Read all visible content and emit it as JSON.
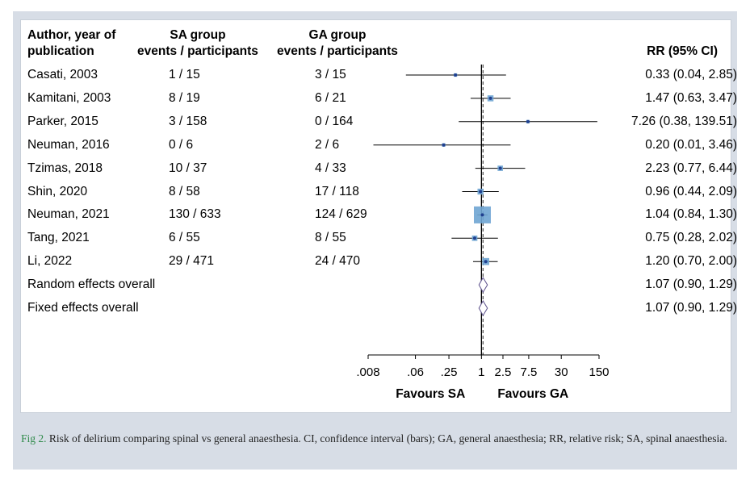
{
  "headers": {
    "author_line1": "Author, year of",
    "author_line2": "publication",
    "sa_line1": "SA group",
    "sa_line2": "events / participants",
    "ga_line1": "GA group",
    "ga_line2": "events / participants",
    "rr": "RR (95% CI)"
  },
  "caption": {
    "fig_label": "Fig 2.",
    "text": " Risk of delirium comparing spinal vs general anaesthesia. CI, confidence interval (bars); GA, general anaesthesia; RR, relative risk; SA, spinal anaesthesia."
  },
  "colors": {
    "box": "#6fa5d3",
    "point": "#1f3f8f",
    "diamond": "#5a4f8a",
    "ci": "#000000"
  },
  "chart_data": {
    "type": "forest",
    "x_scale": "log",
    "xlim": [
      0.008,
      150
    ],
    "x_ticks": [
      {
        "value": 0.008,
        "label": ".008"
      },
      {
        "value": 0.06,
        "label": ".06"
      },
      {
        "value": 0.25,
        "label": ".25"
      },
      {
        "value": 1,
        "label": "1"
      },
      {
        "value": 2.5,
        "label": "2.5"
      },
      {
        "value": 7.5,
        "label": "7.5"
      },
      {
        "value": 30,
        "label": "30"
      },
      {
        "value": 150,
        "label": "150"
      }
    ],
    "reference_line": 1,
    "overall_line": 1.07,
    "favours_left": "Favours SA",
    "favours_right": "Favours GA",
    "studies": [
      {
        "author": "Casati, 2003",
        "sa": "1 / 15",
        "ga": "3 / 15",
        "rr": 0.33,
        "lo": 0.04,
        "hi": 2.85,
        "rr_text": "0.33 (0.04, 2.85)",
        "weight": 0.3
      },
      {
        "author": "Kamitani, 2003",
        "sa": "8 / 19",
        "ga": "6 / 21",
        "rr": 1.47,
        "lo": 0.63,
        "hi": 3.47,
        "rr_text": "1.47 (0.63, 3.47)",
        "weight": 3.7
      },
      {
        "author": "Parker, 2015",
        "sa": "3 / 158",
        "ga": "0 / 164",
        "rr": 7.26,
        "lo": 0.38,
        "hi": 139.51,
        "rr_text": "7.26 (0.38, 139.51)",
        "weight": 0.3
      },
      {
        "author": "Neuman, 2016",
        "sa": "0 / 6",
        "ga": "2 / 6",
        "rr": 0.2,
        "lo": 0.01,
        "hi": 3.46,
        "rr_text": "0.20 (0.01, 3.46)",
        "weight": 0.3
      },
      {
        "author": "Tzimas, 2018",
        "sa": "10 / 37",
        "ga": "4 / 33",
        "rr": 2.23,
        "lo": 0.77,
        "hi": 6.44,
        "rr_text": "2.23 (0.77, 6.44)",
        "weight": 2.4
      },
      {
        "author": "Shin, 2020",
        "sa": "8 / 58",
        "ga": "17 / 118",
        "rr": 0.96,
        "lo": 0.44,
        "hi": 2.09,
        "rr_text": "0.96 (0.44, 2.09)",
        "weight": 3.5
      },
      {
        "author": "Neuman, 2021",
        "sa": "130 / 633",
        "ga": "124 / 629",
        "rr": 1.04,
        "lo": 0.84,
        "hi": 1.3,
        "rr_text": "1.04 (0.84, 1.30)",
        "weight": 60
      },
      {
        "author": "Tang, 2021",
        "sa": "6 / 55",
        "ga": "8 / 55",
        "rr": 0.75,
        "lo": 0.28,
        "hi": 2.02,
        "rr_text": "0.75 (0.28, 2.02)",
        "weight": 2.5
      },
      {
        "author": "Li, 2022",
        "sa": "29 / 471",
        "ga": "24 / 470",
        "rr": 1.2,
        "lo": 0.7,
        "hi": 2.0,
        "rr_text": "1.20 (0.70, 2.00)",
        "weight": 6
      }
    ],
    "overall": [
      {
        "label": "Random effects overall",
        "rr": 1.07,
        "lo": 0.9,
        "hi": 1.29,
        "rr_text": "1.07 (0.90, 1.29)"
      },
      {
        "label": "Fixed effects overall",
        "rr": 1.07,
        "lo": 0.9,
        "hi": 1.29,
        "rr_text": "1.07 (0.90, 1.29)"
      }
    ]
  }
}
